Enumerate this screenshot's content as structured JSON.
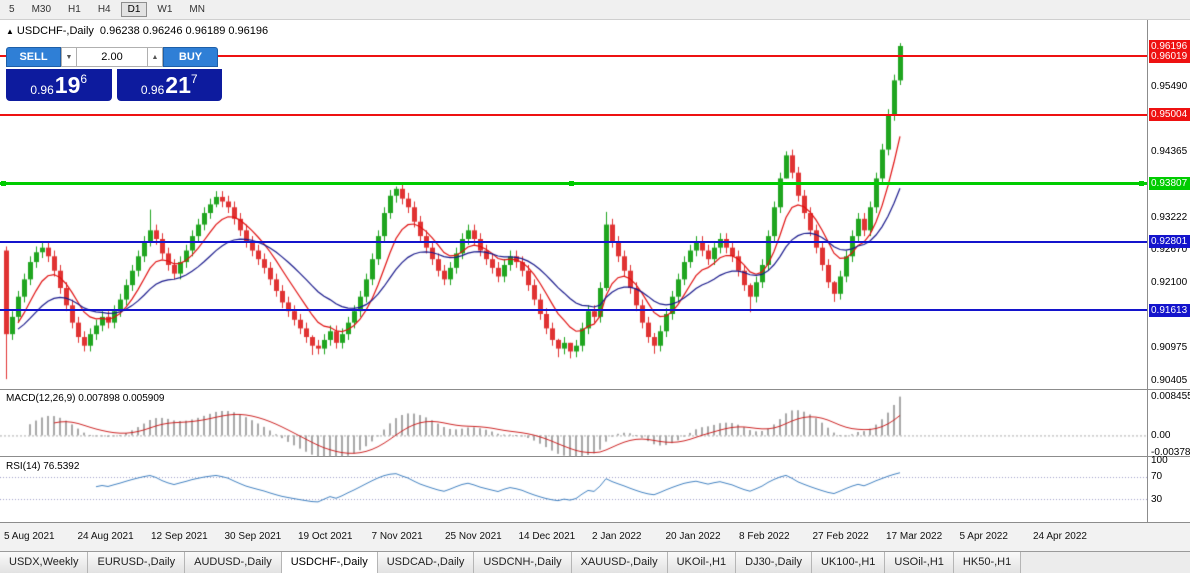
{
  "colors": {
    "bull": "#1fa51f",
    "bear": "#e03232",
    "ma_fast": "#e01010",
    "ma_slow": "#1a1a8c",
    "macd_hist": "#a8a8a8",
    "macd_signal": "#cc2222",
    "rsi_line": "#4080c0",
    "level_red": "#ee1111",
    "level_green": "#00cc00",
    "level_blue": "#1414cc",
    "trade_blue": "#2f7fd6",
    "trade_navy": "#0d1b9e"
  },
  "toolbar": {
    "timeframes": [
      {
        "id": "m5",
        "label": "5",
        "active": false
      },
      {
        "id": "m30",
        "label": "M30",
        "active": false
      },
      {
        "id": "h1",
        "label": "H1",
        "active": false
      },
      {
        "id": "h4",
        "label": "H4",
        "active": false
      },
      {
        "id": "d1",
        "label": "D1",
        "active": true
      },
      {
        "id": "w1",
        "label": "W1",
        "active": false
      },
      {
        "id": "mn",
        "label": "MN",
        "active": false
      }
    ]
  },
  "chart": {
    "marker": "▲",
    "title": "USDCHF-,Daily",
    "ohlc_text": "0.96238 0.96246 0.96189 0.96196",
    "trade_panel": {
      "sell_label": "SELL",
      "buy_label": "BUY",
      "volume": "2.00",
      "down_arrow": "▼",
      "up_arrow": "▲",
      "sell_price": {
        "prefix": "0.96",
        "big": "19",
        "sup": "6"
      },
      "buy_price": {
        "prefix": "0.96",
        "big": "21",
        "sup": "7"
      }
    }
  },
  "indicators": {
    "macd_label": "MACD(12,26,9) 0.007898 0.005909",
    "rsi_label": "RSI(14) 76.5392"
  },
  "chart_data": {
    "type": "candlestick",
    "symbol": "USDCHF-",
    "timeframe": "Daily",
    "x_labels": [
      "5 Aug 2021",
      "24 Aug 2021",
      "12 Sep 2021",
      "30 Sep 2021",
      "19 Oct 2021",
      "7 Nov 2021",
      "25 Nov 2021",
      "14 Dec 2021",
      "2 Jan 2022",
      "20 Jan 2022",
      "8 Feb 2022",
      "27 Feb 2022",
      "17 Mar 2022",
      "5 Apr 2022",
      "24 Apr 2022"
    ],
    "main": {
      "ylim": [
        0.90232,
        0.96647
      ],
      "first_open": 0.9265,
      "default_wick": 0.001,
      "ma_fast_period": 8,
      "ma_slow_period": 20,
      "closes": [
        0.912,
        0.915,
        0.9185,
        0.9215,
        0.9245,
        0.9262,
        0.927,
        0.9255,
        0.923,
        0.92,
        0.917,
        0.914,
        0.9115,
        0.91,
        0.912,
        0.9135,
        0.915,
        0.914,
        0.916,
        0.918,
        0.9205,
        0.923,
        0.9255,
        0.928,
        0.93,
        0.9285,
        0.926,
        0.924,
        0.9225,
        0.9245,
        0.9265,
        0.929,
        0.931,
        0.933,
        0.9345,
        0.9358,
        0.935,
        0.934,
        0.932,
        0.93,
        0.928,
        0.9265,
        0.925,
        0.9235,
        0.9215,
        0.9195,
        0.9175,
        0.916,
        0.9145,
        0.913,
        0.9115,
        0.91,
        0.9095,
        0.911,
        0.9125,
        0.9105,
        0.912,
        0.914,
        0.916,
        0.9185,
        0.9215,
        0.925,
        0.929,
        0.933,
        0.936,
        0.9372,
        0.9355,
        0.934,
        0.9315,
        0.929,
        0.927,
        0.925,
        0.923,
        0.9215,
        0.9235,
        0.926,
        0.9285,
        0.93,
        0.9285,
        0.9265,
        0.925,
        0.9235,
        0.922,
        0.924,
        0.9255,
        0.9245,
        0.923,
        0.9205,
        0.918,
        0.9155,
        0.913,
        0.911,
        0.9095,
        0.9105,
        0.909,
        0.91,
        0.913,
        0.916,
        0.915,
        0.92,
        0.931,
        0.928,
        0.9255,
        0.923,
        0.92,
        0.917,
        0.914,
        0.9115,
        0.91,
        0.9125,
        0.9155,
        0.9185,
        0.9215,
        0.9245,
        0.9265,
        0.928,
        0.9265,
        0.925,
        0.927,
        0.9285,
        0.927,
        0.9255,
        0.923,
        0.9205,
        0.9185,
        0.921,
        0.924,
        0.929,
        0.934,
        0.939,
        0.943,
        0.94,
        0.936,
        0.933,
        0.93,
        0.927,
        0.924,
        0.921,
        0.919,
        0.922,
        0.9255,
        0.929,
        0.932,
        0.93,
        0.934,
        0.939,
        0.944,
        0.95,
        0.956,
        0.96196
      ],
      "special_wicks": {
        "0": [
          0.9272,
          0.9042
        ],
        "24": [
          0.9336,
          0.9272
        ],
        "35": [
          0.9368,
          0.934
        ],
        "51": [
          0.9118,
          0.9084
        ],
        "65": [
          0.9376,
          0.9348
        ],
        "92": [
          0.9112,
          0.908
        ],
        "94": [
          0.9105,
          0.9078
        ],
        "100": [
          0.9332,
          0.9195
        ],
        "108": [
          0.9122,
          0.9086
        ],
        "124": [
          0.9208,
          0.9158
        ],
        "130": [
          0.9437,
          0.9392
        ],
        "138": [
          0.9212,
          0.9176
        ],
        "149": [
          0.96246,
          0.9552
        ]
      },
      "hlines": [
        {
          "value": 0.96019,
          "color_key": "level_red",
          "width": 2,
          "selected": false
        },
        {
          "value": 0.95004,
          "color_key": "level_red",
          "width": 2,
          "selected": false
        },
        {
          "value": 0.93807,
          "color_key": "level_green",
          "width": 3,
          "selected": true
        },
        {
          "value": 0.92801,
          "color_key": "level_blue",
          "width": 2,
          "selected": false
        },
        {
          "value": 0.91613,
          "color_key": "level_blue",
          "width": 2,
          "selected": false
        }
      ],
      "axis_labels": [
        {
          "text": "0.96196",
          "bg": "level_red"
        },
        {
          "text": "0.96019",
          "bg": "level_red"
        },
        {
          "text": "0.95490"
        },
        {
          "text": "0.95004",
          "bg": "level_red"
        },
        {
          "text": "0.94365"
        },
        {
          "text": "0.93807",
          "bg": "level_green"
        },
        {
          "text": "0.93222"
        },
        {
          "text": "0.92670"
        },
        {
          "text": "0.92801",
          "bg": "level_blue"
        },
        {
          "text": "0.92100"
        },
        {
          "text": "0.91613",
          "bg": "level_blue"
        },
        {
          "text": "0.90975"
        },
        {
          "text": "0.90405"
        }
      ]
    },
    "macd": {
      "params": [
        12,
        26,
        9
      ],
      "ylim": [
        -0.0047,
        0.0099
      ],
      "display_max": 0.008455,
      "current_macd": 0.007898,
      "current_signal": 0.005909,
      "axis_labels": [
        {
          "text": "0.008455",
          "value": 0.008455
        },
        {
          "text": "0.00",
          "value": 0
        },
        {
          "text": "-0.00378",
          "value": -0.00378
        }
      ]
    },
    "rsi": {
      "period": 14,
      "current": 76.5392,
      "levels": [
        70,
        30
      ],
      "axis_labels": [
        {
          "text": "100",
          "value": 100
        },
        {
          "text": "70",
          "value": 70
        },
        {
          "text": "30",
          "value": 30
        }
      ]
    }
  },
  "tabs": {
    "items": [
      "USDX,Weekly",
      "EURUSD-,Daily",
      "AUDUSD-,Daily",
      "USDCHF-,Daily",
      "USDCAD-,Daily",
      "USDCNH-,Daily",
      "XAUUSD-,Daily",
      "UKOil-,H1",
      "DJ30-,Daily",
      "UK100-,H1",
      "USOil-,H1",
      "HK50-,H1"
    ],
    "active_index": 3
  }
}
